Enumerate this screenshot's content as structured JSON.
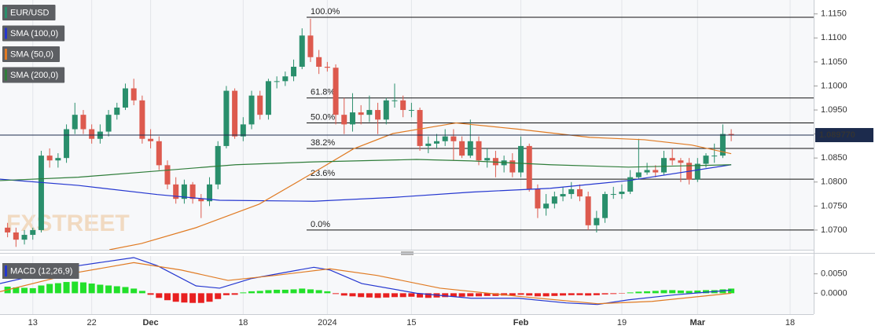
{
  "chart_data": [
    {
      "type": "candlestick",
      "name": "EUR/USD",
      "watermark": "FXSTREET",
      "up_color": "#2a8f6c",
      "down_color": "#dd5a4e",
      "xlim": [
        -0.9,
        95.8
      ],
      "ylim": [
        1.0659,
        1.1179
      ],
      "yticks": [
        {
          "value": 1.07,
          "label": "1.0700"
        },
        {
          "value": 1.075,
          "label": "1.0750"
        },
        {
          "value": 1.08,
          "label": "1.0800"
        },
        {
          "value": 1.085,
          "label": "1.0850"
        },
        {
          "value": 1.09,
          "label": "1.0900"
        },
        {
          "value": 1.095,
          "label": "1.0950"
        },
        {
          "value": 1.1,
          "label": "1.1000"
        },
        {
          "value": 1.105,
          "label": "1.1050"
        },
        {
          "value": 1.11,
          "label": "1.1100"
        },
        {
          "value": 1.115,
          "label": "1.1150"
        }
      ],
      "grid": true,
      "last_price": {
        "value": 1.08977,
        "label": "1.089770",
        "color": "#1c2b4d"
      },
      "candles": {
        "open": [
          1.0705,
          1.0695,
          1.068,
          1.069,
          1.07,
          1.0855,
          1.0845,
          1.085,
          1.091,
          1.094,
          1.091,
          1.089,
          1.0905,
          1.094,
          1.0955,
          1.0995,
          1.097,
          1.089,
          1.0885,
          1.0835,
          1.0795,
          1.0765,
          1.0795,
          1.0765,
          1.076,
          1.0795,
          1.0875,
          1.099,
          1.0895,
          1.092,
          1.098,
          1.094,
          1.101,
          1.101,
          1.102,
          1.104,
          1.1105,
          1.106,
          1.104,
          1.1038,
          1.094,
          1.092,
          1.0945,
          1.094,
          1.095,
          1.093,
          1.097,
          1.097,
          1.095,
          1.095,
          1.0875,
          1.088,
          1.0885,
          1.0895,
          1.0885,
          1.0855,
          1.0885,
          1.0845,
          1.085,
          1.0835,
          1.0845,
          1.082,
          1.0875,
          1.0785,
          1.0745,
          1.0755,
          1.077,
          1.0775,
          1.0785,
          1.077,
          1.071,
          1.0725,
          1.0775,
          1.0775,
          1.078,
          1.081,
          1.082,
          1.0825,
          1.082,
          1.085,
          1.0845,
          1.084,
          1.0805,
          1.0838,
          1.0855,
          1.0855,
          1.09
        ],
        "high": [
          1.0715,
          1.0705,
          1.07,
          1.0705,
          1.0865,
          1.087,
          1.086,
          1.092,
          1.0965,
          1.095,
          1.092,
          1.092,
          1.095,
          1.0965,
          1.1005,
          1.1015,
          1.098,
          1.091,
          1.0895,
          1.0845,
          1.081,
          1.0805,
          1.08,
          1.0775,
          1.081,
          1.0885,
          1.1,
          1.0995,
          1.0935,
          1.099,
          1.099,
          1.1015,
          1.102,
          1.103,
          1.1055,
          1.112,
          1.114,
          1.1075,
          1.105,
          1.1045,
          1.0975,
          1.0985,
          1.096,
          1.098,
          1.0965,
          1.0975,
          1.1005,
          1.098,
          1.0965,
          1.0955,
          1.0895,
          1.09,
          1.091,
          1.091,
          1.0895,
          1.093,
          1.0895,
          1.087,
          1.0865,
          1.0855,
          1.086,
          1.0895,
          1.088,
          1.0795,
          1.0775,
          1.078,
          1.079,
          1.08,
          1.0795,
          1.078,
          1.074,
          1.078,
          1.079,
          1.0795,
          1.0825,
          1.089,
          1.084,
          1.0835,
          1.0865,
          1.087,
          1.085,
          1.085,
          1.085,
          1.086,
          1.088,
          1.092,
          1.091
        ],
        "low": [
          1.0685,
          1.0665,
          1.067,
          1.068,
          1.0695,
          1.083,
          1.083,
          1.084,
          1.09,
          1.09,
          1.088,
          1.088,
          1.0895,
          1.093,
          1.095,
          1.096,
          1.088,
          1.087,
          1.0825,
          1.0785,
          1.0755,
          1.0755,
          1.0755,
          1.0725,
          1.075,
          1.0785,
          1.087,
          1.089,
          1.0885,
          1.091,
          1.093,
          1.093,
          1.0995,
          1.1,
          1.101,
          1.1035,
          1.105,
          1.1025,
          1.103,
          1.092,
          1.09,
          1.0905,
          1.092,
          1.0925,
          1.09,
          1.092,
          1.0955,
          1.0935,
          1.0935,
          1.0865,
          1.086,
          1.087,
          1.0875,
          1.0845,
          1.085,
          1.085,
          1.0835,
          1.083,
          1.081,
          1.082,
          1.081,
          1.081,
          1.078,
          1.0725,
          1.073,
          1.0745,
          1.076,
          1.0765,
          1.076,
          1.07,
          1.0695,
          1.0715,
          1.0765,
          1.0765,
          1.0775,
          1.0805,
          1.0815,
          1.081,
          1.0815,
          1.0835,
          1.08,
          1.0795,
          1.08,
          1.083,
          1.084,
          1.085,
          1.0885
        ],
        "close": [
          1.0695,
          1.068,
          1.069,
          1.07,
          1.0855,
          1.0845,
          1.085,
          1.091,
          1.094,
          1.091,
          1.089,
          1.0905,
          1.094,
          1.0955,
          1.0995,
          1.097,
          1.089,
          1.0885,
          1.0835,
          1.0795,
          1.0765,
          1.0795,
          1.0765,
          1.076,
          1.0795,
          1.0875,
          1.099,
          1.0895,
          1.092,
          1.098,
          1.094,
          1.101,
          1.101,
          1.102,
          1.104,
          1.1105,
          1.106,
          1.104,
          1.1038,
          1.094,
          1.092,
          1.0945,
          1.094,
          1.095,
          1.093,
          1.097,
          1.097,
          1.095,
          1.095,
          1.0875,
          1.088,
          1.0885,
          1.0895,
          1.0885,
          1.0855,
          1.0885,
          1.0845,
          1.085,
          1.0835,
          1.0845,
          1.082,
          1.0875,
          1.0785,
          1.0745,
          1.0755,
          1.077,
          1.0775,
          1.0785,
          1.077,
          1.071,
          1.0725,
          1.0775,
          1.0775,
          1.078,
          1.081,
          1.082,
          1.0825,
          1.082,
          1.085,
          1.0845,
          1.084,
          1.0805,
          1.0838,
          1.0855,
          1.0855,
          1.09,
          1.0898
        ]
      },
      "series": [
        {
          "name": "SMA (100,0)",
          "color": "#2436d0",
          "x": [
            -0.9,
            8.4,
            17.8,
            25.2,
            36.4,
            45.8,
            55.1,
            64.5,
            73.8,
            86
          ],
          "values": [
            1.0806,
            1.0793,
            1.0774,
            1.0762,
            1.076,
            1.0768,
            1.0779,
            1.0787,
            1.0803,
            1.0836
          ]
        },
        {
          "name": "SMA (50,0)",
          "color": "#e07a22",
          "x": [
            12.1,
            15.9,
            22.4,
            29.9,
            36.4,
            41.1,
            45.8,
            53.3,
            60.7,
            69.2,
            75.7,
            81.3,
            86
          ],
          "values": [
            1.0659,
            1.0672,
            1.0705,
            1.0754,
            1.082,
            1.0869,
            1.0901,
            1.0923,
            1.091,
            1.0893,
            1.0888,
            1.0877,
            1.0859
          ]
        },
        {
          "name": "SMA (200,0)",
          "color": "#2f7d3a",
          "x": [
            -0.9,
            8.4,
            17.8,
            27.1,
            36.4,
            48.6,
            55.1,
            64.5,
            73.8,
            86
          ],
          "values": [
            1.0803,
            1.081,
            1.0823,
            1.0836,
            1.0842,
            1.0847,
            1.0844,
            1.0836,
            1.0831,
            1.0836
          ]
        }
      ],
      "fibonacci": [
        {
          "label": "100.0%",
          "value": 1.1143
        },
        {
          "label": "61.8%",
          "value": 1.0975
        },
        {
          "label": "50.0%",
          "value": 1.0923
        },
        {
          "label": "38.2%",
          "value": 1.087
        },
        {
          "label": "23.6%",
          "value": 1.0806
        },
        {
          "label": "0.0%",
          "value": 1.07
        }
      ]
    },
    {
      "type": "macd",
      "title": "MACD (12,26,9)",
      "xlim": [
        -0.9,
        95.8
      ],
      "ylim": [
        -0.0054,
        0.0096
      ],
      "yticks": [
        {
          "value": 0,
          "label": "0.0000"
        },
        {
          "value": 0.005,
          "label": "0.0050"
        }
      ],
      "xticks": [
        {
          "value": 3,
          "label": "13"
        },
        {
          "value": 10,
          "label": "22"
        },
        {
          "value": 17,
          "label": "Dec"
        },
        {
          "value": 28,
          "label": "18"
        },
        {
          "value": 38,
          "label": "2024"
        },
        {
          "value": 48,
          "label": "15"
        },
        {
          "value": 61,
          "label": "Feb"
        },
        {
          "value": 73,
          "label": "19"
        },
        {
          "value": 82,
          "label": "Mar"
        },
        {
          "value": 93,
          "label": "18"
        }
      ],
      "histogram": {
        "up_color": "#22e02a",
        "down_color": "#e82020",
        "values": [
          0.0017,
          0.0015,
          0.0014,
          0.0013,
          0.002,
          0.0024,
          0.0026,
          0.0029,
          0.003,
          0.0028,
          0.0025,
          0.0022,
          0.002,
          0.0018,
          0.0016,
          0.0012,
          0.0006,
          -0.0004,
          -0.0012,
          -0.0018,
          -0.0022,
          -0.0024,
          -0.0025,
          -0.0025,
          -0.0022,
          -0.0015,
          -0.0005,
          -0.0004,
          0.0002,
          0.0005,
          0.0006,
          0.0008,
          0.0009,
          0.0009,
          0.001,
          0.0012,
          0.001,
          0.0008,
          0.0005,
          -0.0002,
          -0.0006,
          -0.0008,
          -0.001,
          -0.0011,
          -0.0012,
          -0.0011,
          -0.001,
          -0.001,
          -0.0009,
          -0.0011,
          -0.0012,
          -0.0011,
          -0.001,
          -0.0009,
          -0.0009,
          -0.0008,
          -0.0008,
          -0.0007,
          -0.0007,
          -0.0006,
          -0.0006,
          -0.0004,
          -0.0006,
          -0.0008,
          -0.0008,
          -0.0007,
          -0.0006,
          -0.0005,
          -0.0005,
          -0.0006,
          -0.0005,
          -0.0003,
          -0.0002,
          -0.0001,
          0.0002,
          0.0004,
          0.0005,
          0.0006,
          0.0008,
          0.0008,
          0.0007,
          0.0006,
          0.0007,
          0.0008,
          0.0008,
          0.001,
          0.0012
        ]
      },
      "lines": [
        {
          "color": "#2436d0",
          "x": [
            -0.9,
            8.4,
            15,
            17.8,
            22.4,
            25.2,
            29,
            34.6,
            36.4,
            38.3,
            42.1,
            48.6,
            55.1,
            60.7,
            66.4,
            70.1,
            73.8,
            79.4,
            86
          ],
          "values": [
            0.0025,
            0.0071,
            0.0092,
            0.0071,
            0.0019,
            0.0013,
            0.0038,
            0.006,
            0.0067,
            0.006,
            0.0025,
            0,
            -0.0013,
            -0.0013,
            -0.0025,
            -0.0029,
            -0.0017,
            -0.0004,
            0.0008
          ]
        },
        {
          "color": "#e07a22",
          "x": [
            -0.9,
            8.4,
            15,
            20.6,
            26.2,
            31.8,
            38.3,
            43.9,
            51.4,
            60.7,
            70.1,
            76.6,
            86
          ],
          "values": [
            0.0004,
            0.0054,
            0.0079,
            0.006,
            0.0033,
            0.0046,
            0.0063,
            0.0046,
            0.0013,
            -0.0008,
            -0.0027,
            -0.0021,
            0
          ]
        }
      ]
    }
  ]
}
